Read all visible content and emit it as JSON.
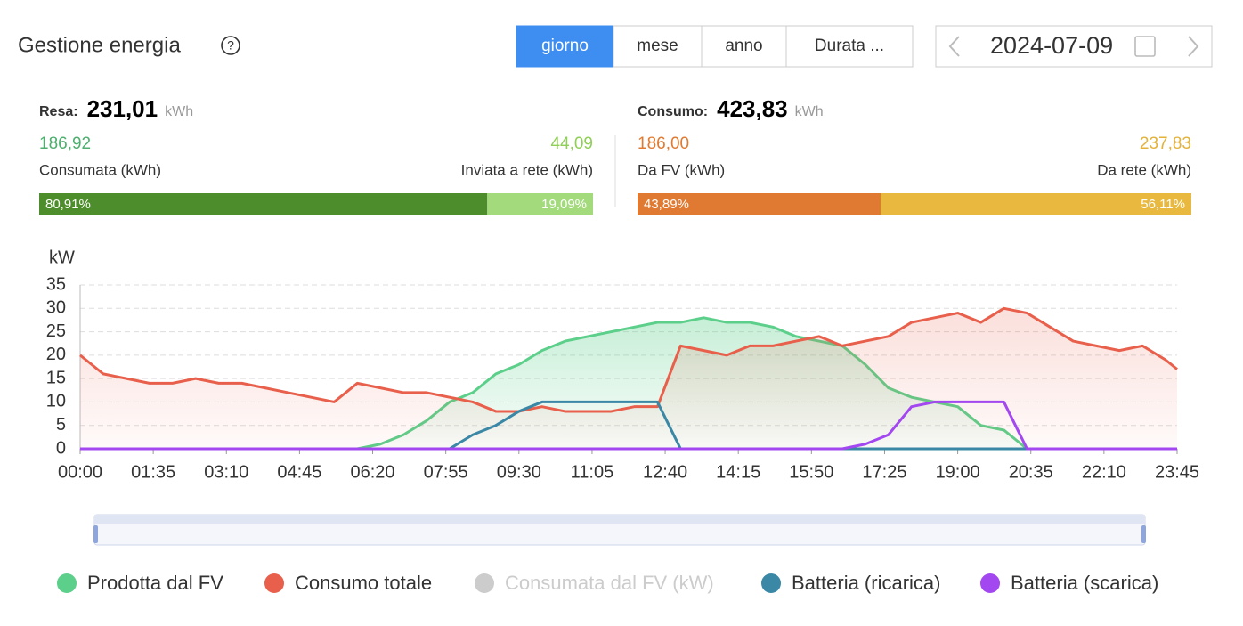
{
  "header": {
    "title": "Gestione energia",
    "buttons": [
      "giorno",
      "mese",
      "anno",
      "Durata ..."
    ],
    "date": "2024-07-09"
  },
  "summary": [
    {
      "label": "Resa:",
      "total": "231,01",
      "unit": "kWh",
      "items": [
        {
          "value": "186,92",
          "label": "Consumata (kWh)",
          "color": "#4caf6e"
        },
        {
          "value": "44,09",
          "label": "Inviata a rete (kWh)",
          "color": "#8fcf56"
        }
      ],
      "shares": [
        {
          "value": 80.91,
          "label": "80,91%",
          "color": "#4d8d2b"
        },
        {
          "value": 19.09,
          "label": "19,09%",
          "color": "#a2da7c"
        }
      ]
    },
    {
      "label": "Consumo:",
      "total": "423,83",
      "unit": "kWh",
      "items": [
        {
          "value": "186,00",
          "label": "Da FV (kWh)",
          "color": "#e07a30"
        },
        {
          "value": "237,83",
          "label": "Da rete (kWh)",
          "color": "#e3b23a"
        }
      ],
      "shares": [
        {
          "value": 43.89,
          "label": "43,89%",
          "color": "#e07a32"
        },
        {
          "value": 56.11,
          "label": "56,11%",
          "color": "#e8b93e"
        }
      ]
    }
  ],
  "chart_data": {
    "type": "line",
    "y_label": "kW",
    "grid": true,
    "xlim": [
      "00:00",
      "23:45"
    ],
    "xticks": [
      "00:00",
      "01:35",
      "03:10",
      "04:45",
      "06:20",
      "07:55",
      "09:30",
      "11:05",
      "12:40",
      "14:15",
      "15:50",
      "17:25",
      "19:00",
      "20:35",
      "22:10",
      "23:45"
    ],
    "ylim": [
      0,
      35
    ],
    "yticks": [
      0,
      5,
      10,
      15,
      20,
      25,
      30,
      35
    ],
    "x": [
      "00:00",
      "00:30",
      "01:00",
      "01:30",
      "02:00",
      "02:30",
      "03:00",
      "03:30",
      "04:00",
      "04:30",
      "05:00",
      "05:30",
      "06:00",
      "06:30",
      "07:00",
      "07:30",
      "08:00",
      "08:30",
      "09:00",
      "09:30",
      "10:00",
      "10:30",
      "11:00",
      "11:30",
      "12:00",
      "12:30",
      "13:00",
      "13:30",
      "14:00",
      "14:30",
      "15:00",
      "15:30",
      "16:00",
      "16:30",
      "17:00",
      "17:30",
      "18:00",
      "18:30",
      "19:00",
      "19:30",
      "20:00",
      "20:30",
      "21:00",
      "21:30",
      "22:00",
      "22:30",
      "23:00",
      "23:30",
      "23:45"
    ],
    "series": [
      {
        "name": "Prodotta dal FV",
        "color": "#5ccf8a",
        "values": [
          0,
          0,
          0,
          0,
          0,
          0,
          0,
          0,
          0,
          0,
          0,
          0,
          0,
          1,
          3,
          6,
          10,
          12,
          16,
          18,
          21,
          23,
          24,
          25,
          26,
          27,
          27,
          28,
          27,
          27,
          26,
          24,
          23,
          22,
          18,
          13,
          11,
          10,
          9,
          5,
          4,
          0,
          0,
          0,
          0,
          0,
          0,
          0,
          0
        ]
      },
      {
        "name": "Consumo totale",
        "color": "#e8604c",
        "values": [
          20,
          16,
          15,
          14,
          14,
          15,
          14,
          14,
          13,
          12,
          11,
          10,
          14,
          13,
          12,
          12,
          11,
          10,
          8,
          8,
          9,
          8,
          8,
          8,
          9,
          9,
          22,
          21,
          20,
          22,
          22,
          23,
          24,
          22,
          23,
          24,
          27,
          28,
          29,
          27,
          30,
          29,
          26,
          23,
          22,
          21,
          22,
          19,
          17
        ]
      },
      {
        "name": "Consumata dal FV (kW)",
        "color": "#cccccc",
        "hidden": true,
        "values": [
          null,
          null,
          null,
          null,
          null,
          null,
          null,
          null,
          null,
          null,
          null,
          null,
          null,
          null,
          null,
          null,
          null,
          null,
          null,
          null,
          null,
          null,
          null,
          null,
          null,
          null,
          null,
          null,
          null,
          null,
          null,
          null,
          null,
          null,
          null,
          null,
          null,
          null,
          null,
          null,
          null,
          null,
          null,
          null,
          null,
          null,
          null,
          null,
          null
        ]
      },
      {
        "name": "Batteria (ricarica)",
        "color": "#3a87a6",
        "values": [
          0,
          0,
          0,
          0,
          0,
          0,
          0,
          0,
          0,
          0,
          0,
          0,
          0,
          0,
          0,
          0,
          0,
          3,
          5,
          8,
          10,
          10,
          10,
          10,
          10,
          10,
          0,
          0,
          0,
          0,
          0,
          0,
          0,
          0,
          0,
          0,
          0,
          0,
          0,
          0,
          0,
          0,
          0,
          0,
          0,
          0,
          0,
          0,
          0
        ]
      },
      {
        "name": "Batteria (scarica)",
        "color": "#a347f0",
        "values": [
          0,
          0,
          0,
          0,
          0,
          0,
          0,
          0,
          0,
          0,
          0,
          0,
          0,
          0,
          0,
          0,
          0,
          0,
          0,
          0,
          0,
          0,
          0,
          0,
          0,
          0,
          0,
          0,
          0,
          0,
          0,
          0,
          0,
          0,
          1,
          3,
          9,
          10,
          10,
          10,
          10,
          0,
          0,
          0,
          0,
          0,
          0,
          0,
          0
        ]
      }
    ]
  }
}
